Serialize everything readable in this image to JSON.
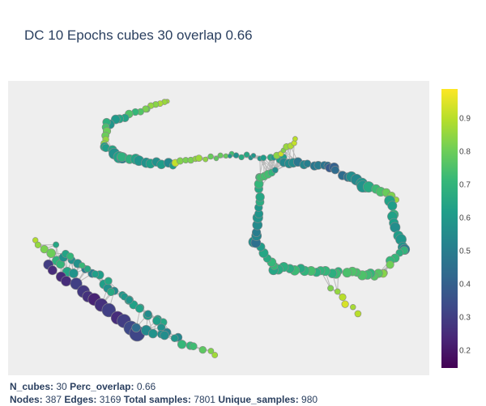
{
  "title": "DC 10 Epochs cubes 30 overlap 0.66",
  "footer": {
    "line1": [
      {
        "label": "N_cubes:",
        "value": "30"
      },
      {
        "label": "Perc_overlap:",
        "value": "0.66"
      }
    ],
    "line2": [
      {
        "label": "Nodes:",
        "value": "387"
      },
      {
        "label": "Edges:",
        "value": "3169"
      },
      {
        "label": "Total samples:",
        "value": "7801"
      },
      {
        "label": "Unique_samples:",
        "value": "980"
      }
    ]
  },
  "colors": {
    "plot_background": "#eeeeee",
    "edge": "#b8b8b8",
    "node_outline": "#888888",
    "title": "#2a3f5f",
    "colorscale": "viridis"
  },
  "chart_data": {
    "type": "network-graph",
    "colorbar": {
      "colorscale": "viridis",
      "range": [
        0.15,
        0.99
      ],
      "ticks": [
        "0.2",
        "0.3",
        "0.4",
        "0.5",
        "0.6",
        "0.7",
        "0.8",
        "0.9"
      ]
    },
    "axes_visible": false,
    "grid": false,
    "legend": "none"
  }
}
